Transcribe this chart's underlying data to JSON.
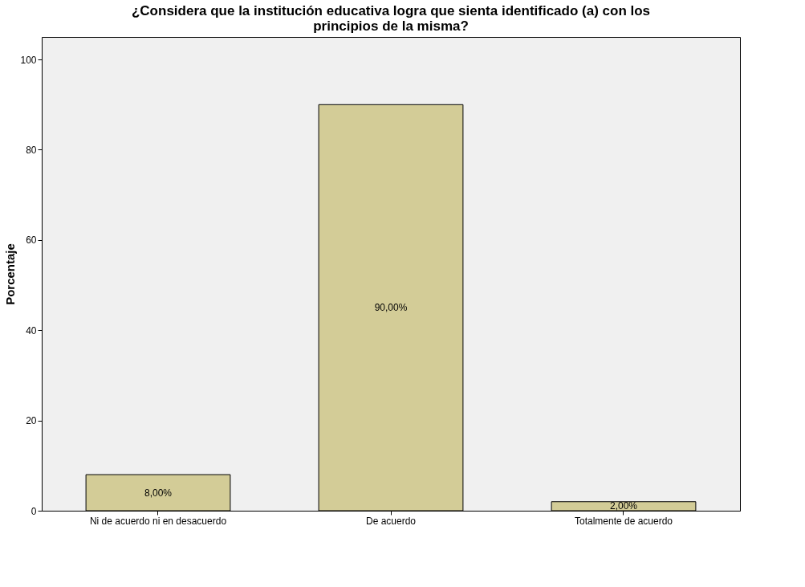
{
  "chart_data": {
    "type": "bar",
    "title": "¿Considera que la institución educativa logra que sienta identificado (a) con los principios de la misma?",
    "ylabel": "Porcentaje",
    "categories": [
      "Ni de acuerdo ni en desacuerdo",
      "De acuerdo",
      "Totalmente de acuerdo"
    ],
    "values": [
      8,
      90,
      2
    ],
    "value_labels": [
      "8,00%",
      "90,00%",
      "2,00%"
    ],
    "color": "#d3cc97",
    "ylim": [
      0,
      105
    ],
    "yticks": [
      0,
      20,
      40,
      60,
      80,
      100
    ]
  }
}
